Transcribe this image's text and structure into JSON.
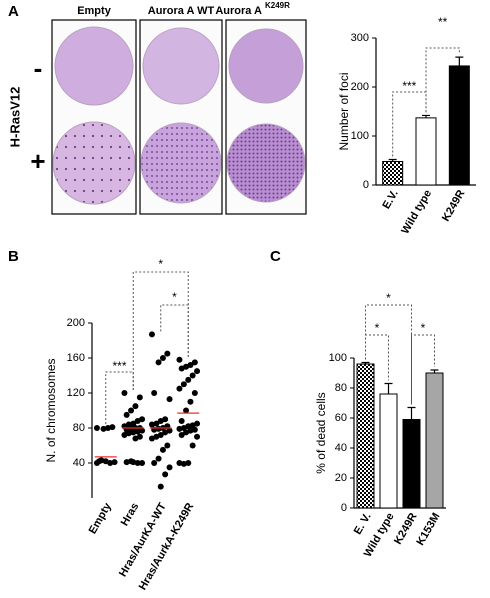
{
  "panel_labels": [
    "A",
    "B",
    "C"
  ],
  "photos": {
    "row_label": "H-RasV12",
    "rows": [
      "-",
      "+"
    ],
    "columns": [
      {
        "text": "Empty"
      },
      {
        "text": "Aurora A WT"
      },
      {
        "text": "Aurora A",
        "sup": "K249R"
      }
    ]
  },
  "chart_data": [
    {
      "type": "bar",
      "ylabel": "Number of foci",
      "categories": [
        "E.V.",
        "Wild type",
        "K249R"
      ],
      "values": [
        48,
        137,
        243
      ],
      "errors": [
        4,
        5,
        18
      ],
      "colors": [
        "#000000",
        "#ffffff",
        "#000000"
      ],
      "checkered": [
        true,
        false,
        false
      ],
      "ylim": [
        0,
        300
      ],
      "yticks": [
        0,
        100,
        200,
        300
      ],
      "grid": false,
      "significance": [
        "***",
        "**"
      ]
    },
    {
      "type": "strip",
      "ylabel": "N. of chromosomes",
      "categories": [
        "Empty",
        "Hras",
        "Hras/AurKA-WT",
        "Hras/AurkA-K249R"
      ],
      "series": [
        {
          "values": [
            80,
            81,
            80,
            79,
            42,
            41,
            40,
            42,
            43,
            40
          ]
        },
        {
          "values": [
            120,
            115,
            105,
            100,
            95,
            90,
            88,
            85,
            84,
            82,
            80,
            80,
            79,
            78,
            77,
            76,
            75,
            74,
            72,
            70,
            68,
            42,
            41,
            40,
            40,
            41
          ]
        },
        {
          "values": [
            187,
            165,
            160,
            155,
            120,
            113,
            90,
            88,
            85,
            84,
            82,
            80,
            79,
            78,
            77,
            75,
            72,
            70,
            68,
            60,
            55,
            45,
            40,
            35,
            27,
            13
          ]
        },
        {
          "values": [
            158,
            155,
            152,
            150,
            148,
            145,
            140,
            135,
            130,
            125,
            120,
            110,
            100,
            88,
            85,
            83,
            82,
            80,
            79,
            78,
            77,
            75,
            72,
            70,
            60,
            40,
            39,
            40
          ]
        }
      ],
      "means": [
        47,
        80,
        80,
        97
      ],
      "point_color": "#000000",
      "mean_color": "#e8332a",
      "ylim": [
        0,
        200
      ],
      "yticks": [
        40,
        80,
        120,
        160,
        200
      ],
      "grid": false,
      "significance": [
        "***",
        "*",
        "*"
      ]
    },
    {
      "type": "bar",
      "ylabel": "% of dead cells",
      "categories": [
        "E. V.",
        "Wild type",
        "K249R",
        "K153M"
      ],
      "values": [
        96,
        76,
        59,
        90
      ],
      "errors": [
        1,
        7,
        8,
        2
      ],
      "colors": [
        "#000000",
        "#ffffff",
        "#000000",
        "#a6a6a6"
      ],
      "checkered": [
        true,
        false,
        false,
        false
      ],
      "ylim": [
        0,
        100
      ],
      "yticks": [
        0,
        20,
        40,
        60,
        80,
        100
      ],
      "grid": false,
      "significance": [
        "*",
        "*",
        "*"
      ]
    }
  ]
}
